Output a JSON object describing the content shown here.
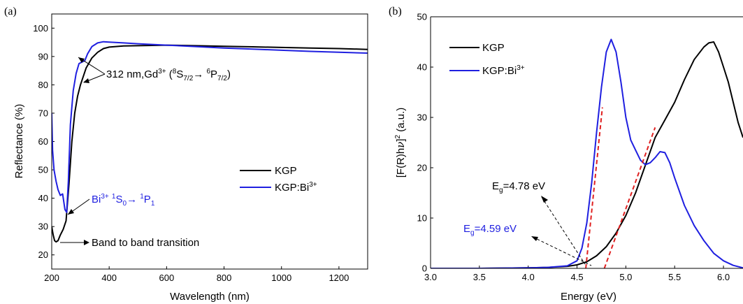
{
  "chart_data": [
    {
      "type": "line",
      "panel_label": "(a)",
      "xlabel": "Wavelength (nm)",
      "ylabel": "Reflectance (%)",
      "xlim": [
        200,
        1300
      ],
      "ylim": [
        15,
        105
      ],
      "xticks": [
        200,
        400,
        600,
        800,
        1000,
        1200
      ],
      "yticks": [
        20,
        30,
        40,
        50,
        60,
        70,
        80,
        90,
        100
      ],
      "legend_position": "center-right",
      "series": [
        {
          "name": "KGP",
          "color": "#000000",
          "x": [
            200,
            205,
            210,
            215,
            222,
            230,
            240,
            250,
            260,
            270,
            280,
            290,
            300,
            320,
            340,
            360,
            380,
            400,
            450,
            500,
            600,
            700,
            800,
            900,
            1000,
            1100,
            1200,
            1300
          ],
          "y": [
            30,
            27,
            25,
            24.6,
            25,
            27,
            29,
            32,
            45,
            60,
            70,
            76,
            80,
            86,
            89.5,
            91.5,
            92.8,
            93.3,
            93.7,
            93.8,
            94.0,
            93.8,
            93.6,
            93.4,
            93.2,
            93.0,
            92.8,
            92.5
          ]
        },
        {
          "name": "KGP:Bi",
          "color": "#1f1fe0",
          "x": [
            200,
            203,
            208,
            215,
            222,
            230,
            238,
            246,
            252,
            258,
            265,
            275,
            285,
            295,
            305,
            315,
            325,
            340,
            360,
            380,
            400,
            450,
            500,
            600,
            700,
            800,
            900,
            1000,
            1100,
            1200,
            1300
          ],
          "y": [
            70,
            57,
            50,
            46,
            43,
            41,
            41.5,
            36,
            35,
            46,
            66,
            78,
            84,
            87.5,
            88,
            88.5,
            91,
            93.5,
            94.8,
            95.2,
            95.1,
            94.8,
            94.5,
            94.0,
            93.5,
            93.0,
            92.6,
            92.2,
            91.8,
            91.5,
            91.2
          ]
        }
      ],
      "annotations": [
        {
          "text": "312 nm,Gd",
          "sup": "3+",
          "rest": " (",
          "s1": "8",
          "t1": "S",
          "sub1": "7/2",
          "arrow": "→ ",
          "s2": "6",
          "t2": "P",
          "sub2": "7/2",
          "close": ")"
        },
        {
          "text": "Bi",
          "sup": "3+",
          "s1": "1",
          "t1": "S",
          "sub1": "0",
          "arrow": "→ ",
          "s2": "1",
          "t2": "P",
          "sub2": "1"
        },
        {
          "text": "Band to band transition"
        }
      ]
    },
    {
      "type": "line",
      "panel_label": "(b)",
      "xlabel": "Energy (eV)",
      "ylabel_pre": "[F(R)h",
      "ylabel_nu": "ν",
      "ylabel_post": "]",
      "ylabel_sup": "2",
      "ylabel_unit": " (a.u.)",
      "xlim": [
        3.0,
        6.2
      ],
      "ylim": [
        0,
        50
      ],
      "xticks": [
        3.0,
        3.5,
        4.0,
        4.5,
        5.0,
        5.5,
        6.0
      ],
      "yticks": [
        0,
        10,
        20,
        30,
        40,
        50
      ],
      "legend_position": "top-left",
      "series": [
        {
          "name": "KGP",
          "color": "#000000",
          "x": [
            3.0,
            3.5,
            4.0,
            4.2,
            4.4,
            4.5,
            4.6,
            4.7,
            4.8,
            4.9,
            5.0,
            5.1,
            5.2,
            5.3,
            5.4,
            5.5,
            5.6,
            5.7,
            5.8,
            5.85,
            5.9,
            5.95,
            6.0,
            6.05,
            6.1,
            6.15,
            6.2
          ],
          "y": [
            0,
            0,
            0.1,
            0.2,
            0.4,
            0.7,
            1.3,
            2.5,
            4.3,
            7.0,
            10.5,
            15,
            20.5,
            26,
            29.5,
            33,
            37.5,
            41.5,
            44,
            44.8,
            45,
            43,
            40,
            37,
            33,
            29,
            26
          ]
        },
        {
          "name": "KGP:Bi",
          "color": "#1f1fe0",
          "x": [
            3.0,
            3.5,
            4.0,
            4.2,
            4.4,
            4.5,
            4.55,
            4.6,
            4.65,
            4.7,
            4.75,
            4.8,
            4.85,
            4.9,
            4.95,
            5.0,
            5.05,
            5.1,
            5.15,
            5.2,
            5.25,
            5.3,
            5.35,
            5.4,
            5.45,
            5.5,
            5.6,
            5.7,
            5.8,
            5.9,
            6.0,
            6.1,
            6.2
          ],
          "y": [
            0,
            0,
            0.1,
            0.2,
            0.5,
            1.5,
            4,
            9,
            17,
            27,
            36,
            43,
            45.5,
            43,
            37,
            30,
            25.5,
            23.5,
            21.5,
            20.6,
            21,
            22,
            23.2,
            23,
            21,
            18,
            12.5,
            8.5,
            5.5,
            3,
            1.5,
            0.6,
            0.1
          ]
        }
      ],
      "fit_lines": [
        {
          "x": [
            4.59,
            4.76
          ],
          "y": [
            0,
            32
          ]
        },
        {
          "x": [
            4.78,
            5.3
          ],
          "y": [
            0,
            28
          ]
        }
      ],
      "annotations": [
        {
          "pre": "E",
          "sub": "g",
          "text": "=4.78 eV",
          "color": "#000000"
        },
        {
          "pre": "E",
          "sub": "g",
          "text": "=4.59 eV",
          "color": "#1f1fe0"
        }
      ]
    }
  ],
  "legend_sup": "3+",
  "colors": {
    "kgp": "#000000",
    "kgp_bi": "#1f1fe0",
    "fit": "#e02020"
  }
}
